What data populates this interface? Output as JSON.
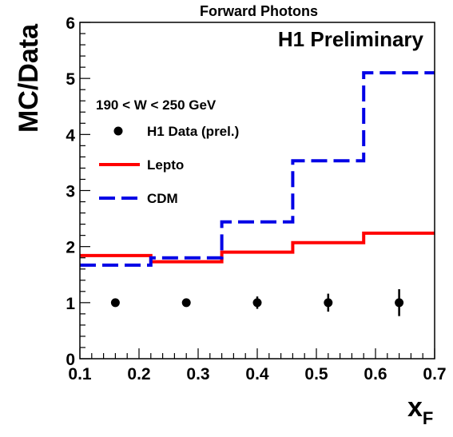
{
  "chart_data": {
    "type": "line",
    "title": "Forward Photons",
    "xlabel": "x",
    "xlabel_subscript": "F",
    "ylabel": "MC/Data",
    "annotation": "H1 Preliminary",
    "xlim": [
      0.1,
      0.7
    ],
    "ylim": [
      0,
      6
    ],
    "x_ticks": [
      "0.1",
      "0.2",
      "0.3",
      "0.4",
      "0.5",
      "0.6",
      "0.7"
    ],
    "y_ticks": [
      "0",
      "1",
      "2",
      "3",
      "4",
      "5",
      "6"
    ],
    "grid": false,
    "legend": {
      "placement": "upper-left",
      "header": "190 < W < 250 GeV",
      "entries": [
        {
          "label": "H1 Data (prel.)",
          "style": "marker",
          "color": "#000000"
        },
        {
          "label": "Lepto",
          "style": "solid",
          "color": "#ff0000"
        },
        {
          "label": "CDM",
          "style": "dashed",
          "color": "#0000e6"
        }
      ]
    },
    "bin_edges": [
      0.1,
      0.22,
      0.34,
      0.46,
      0.58,
      0.7
    ],
    "series": [
      {
        "name": "H1 Data (prel.)",
        "kind": "points",
        "color": "#000000",
        "x": [
          0.16,
          0.28,
          0.4,
          0.52,
          0.64
        ],
        "y": [
          1.0,
          1.0,
          1.0,
          1.0,
          1.0
        ],
        "err": [
          0.03,
          0.07,
          0.11,
          0.16,
          0.24
        ]
      },
      {
        "name": "Lepto",
        "kind": "step",
        "color": "#ff0000",
        "values": [
          1.84,
          1.73,
          1.9,
          2.07,
          2.24
        ]
      },
      {
        "name": "CDM",
        "kind": "step",
        "color": "#0000e6",
        "values": [
          1.67,
          1.8,
          2.44,
          3.53,
          5.1
        ]
      }
    ]
  }
}
